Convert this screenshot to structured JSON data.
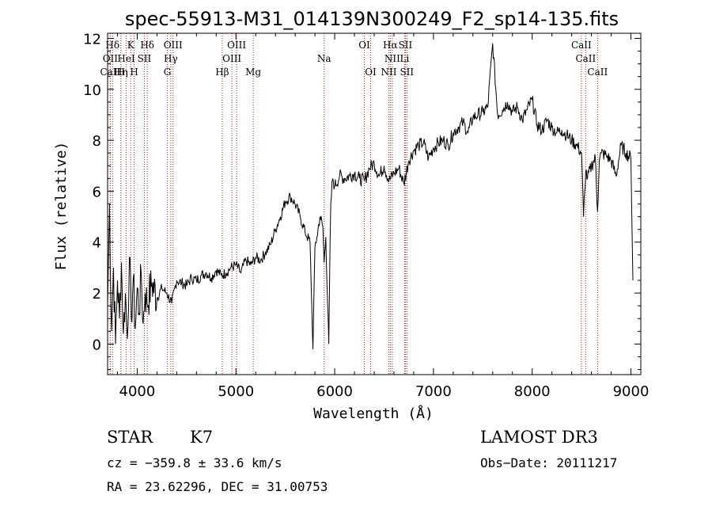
{
  "chart_data": {
    "type": "line",
    "title": "spec-55913-M31_014139N300249_F2_sp14-135.fits",
    "xlabel": "Wavelength (Å)",
    "ylabel": "Flux (relative)",
    "xlim": [
      3700,
      9100
    ],
    "ylim": [
      -1.2,
      12.2
    ],
    "xticks": [
      4000,
      5000,
      6000,
      7000,
      8000,
      9000
    ],
    "yticks": [
      0,
      2,
      4,
      6,
      8,
      10,
      12
    ],
    "series": [
      {
        "name": "spectrum",
        "x": [
          3700,
          3720,
          3740,
          3760,
          3780,
          3800,
          3820,
          3840,
          3860,
          3880,
          3900,
          3920,
          3940,
          3960,
          3980,
          4000,
          4020,
          4040,
          4060,
          4080,
          4100,
          4150,
          4200,
          4250,
          4300,
          4350,
          4400,
          4450,
          4500,
          4550,
          4600,
          4650,
          4700,
          4750,
          4800,
          4850,
          4900,
          4950,
          5000,
          5050,
          5100,
          5150,
          5200,
          5250,
          5300,
          5350,
          5400,
          5450,
          5500,
          5550,
          5600,
          5650,
          5700,
          5750,
          5780,
          5800,
          5820,
          5850,
          5880,
          5893,
          5910,
          5940,
          5960,
          5980,
          6000,
          6050,
          6100,
          6150,
          6200,
          6250,
          6300,
          6350,
          6400,
          6450,
          6500,
          6550,
          6600,
          6650,
          6700,
          6750,
          6800,
          6850,
          6900,
          6950,
          7000,
          7050,
          7100,
          7150,
          7200,
          7250,
          7300,
          7350,
          7400,
          7450,
          7500,
          7550,
          7600,
          7650,
          7700,
          7750,
          7800,
          7850,
          7900,
          7950,
          8000,
          8050,
          8100,
          8150,
          8200,
          8250,
          8300,
          8350,
          8400,
          8450,
          8500,
          8520,
          8542,
          8560,
          8600,
          8640,
          8662,
          8680,
          8700,
          8750,
          8800,
          8850,
          8900,
          8950,
          9000,
          9020
        ],
        "y": [
          1.5,
          5.5,
          0.5,
          3.0,
          0.0,
          2.5,
          1.0,
          3.2,
          0.4,
          2.0,
          0.2,
          3.4,
          1.0,
          2.6,
          0.6,
          2.2,
          1.2,
          2.8,
          0.8,
          2.0,
          1.6,
          2.4,
          1.8,
          2.2,
          2.0,
          1.6,
          2.5,
          2.4,
          2.3,
          2.6,
          2.5,
          2.7,
          2.8,
          2.6,
          2.9,
          2.7,
          2.8,
          3.0,
          3.1,
          2.8,
          3.3,
          3.1,
          3.4,
          3.3,
          3.6,
          3.9,
          4.5,
          5.0,
          5.6,
          5.8,
          5.5,
          5.0,
          4.4,
          4.0,
          -0.2,
          3.8,
          4.2,
          5.0,
          4.6,
          3.2,
          4.2,
          0.0,
          5.5,
          6.5,
          6.2,
          6.6,
          6.5,
          6.6,
          6.7,
          6.5,
          6.4,
          6.9,
          7.1,
          6.6,
          7.0,
          6.4,
          6.7,
          6.9,
          6.3,
          7.2,
          7.6,
          7.8,
          7.9,
          7.3,
          7.7,
          7.9,
          8.0,
          7.8,
          8.3,
          8.5,
          8.7,
          8.3,
          8.9,
          9.0,
          9.1,
          9.3,
          11.8,
          9.0,
          9.2,
          9.5,
          9.1,
          9.3,
          8.8,
          9.2,
          9.6,
          8.6,
          8.4,
          8.8,
          8.5,
          8.3,
          8.4,
          8.2,
          8.0,
          7.8,
          7.5,
          5.0,
          6.8,
          6.5,
          7.0,
          7.3,
          5.2,
          7.2,
          7.5,
          7.4,
          7.2,
          6.6,
          7.8,
          7.5,
          7.3,
          2.5
        ]
      }
    ],
    "lines": [
      {
        "name": "Hδ",
        "wavelength": 3750,
        "row": 1
      },
      {
        "name": "CaII",
        "wavelength": 3727,
        "row": 3
      },
      {
        "name": "OII",
        "wavelength": 3727,
        "row": 2
      },
      {
        "name": "H",
        "wavelength": 3835,
        "row": 3
      },
      {
        "name": "K",
        "wavelength": 3934,
        "row": 1
      },
      {
        "name": "HeI",
        "wavelength": 3889,
        "row": 2
      },
      {
        "name": "Hη",
        "wavelength": 3835,
        "row": 3
      },
      {
        "name": "Hδ",
        "wavelength": 4102,
        "row": 1
      },
      {
        "name": "SII",
        "wavelength": 4072,
        "row": 2
      },
      {
        "name": "H",
        "wavelength": 3969,
        "row": 3
      },
      {
        "name": "OIII",
        "wavelength": 4363,
        "row": 1
      },
      {
        "name": "Hγ",
        "wavelength": 4340,
        "row": 2
      },
      {
        "name": "G",
        "wavelength": 4305,
        "row": 3
      },
      {
        "name": "Hβ",
        "wavelength": 4861,
        "row": 3
      },
      {
        "name": "OIII",
        "wavelength": 5007,
        "row": 1
      },
      {
        "name": "OIII",
        "wavelength": 4959,
        "row": 2
      },
      {
        "name": "Mg",
        "wavelength": 5175,
        "row": 3
      },
      {
        "name": "Na",
        "wavelength": 5893,
        "row": 2
      },
      {
        "name": "OI",
        "wavelength": 6300,
        "row": 1
      },
      {
        "name": "OI",
        "wavelength": 6364,
        "row": 3
      },
      {
        "name": "Hα",
        "wavelength": 6563,
        "row": 1
      },
      {
        "name": "SII",
        "wavelength": 6716,
        "row": 1
      },
      {
        "name": "NII",
        "wavelength": 6583,
        "row": 2
      },
      {
        "name": "Li",
        "wavelength": 6708,
        "row": 2
      },
      {
        "name": "NII",
        "wavelength": 6548,
        "row": 3
      },
      {
        "name": "SII",
        "wavelength": 6731,
        "row": 3
      },
      {
        "name": "CaII",
        "wavelength": 8498,
        "row": 1
      },
      {
        "name": "CaII",
        "wavelength": 8542,
        "row": 2
      },
      {
        "name": "CaII",
        "wavelength": 8662,
        "row": 3
      }
    ],
    "line_color": "#b22222"
  },
  "info": {
    "object_class": "STAR",
    "subclass": "K7",
    "survey": "LAMOST DR3",
    "cz": "cz = −359.8 ± 33.6 km/s",
    "obs_date": "Obs−Date: 20111217",
    "coords": "RA =  23.62296, DEC =  31.00753"
  }
}
